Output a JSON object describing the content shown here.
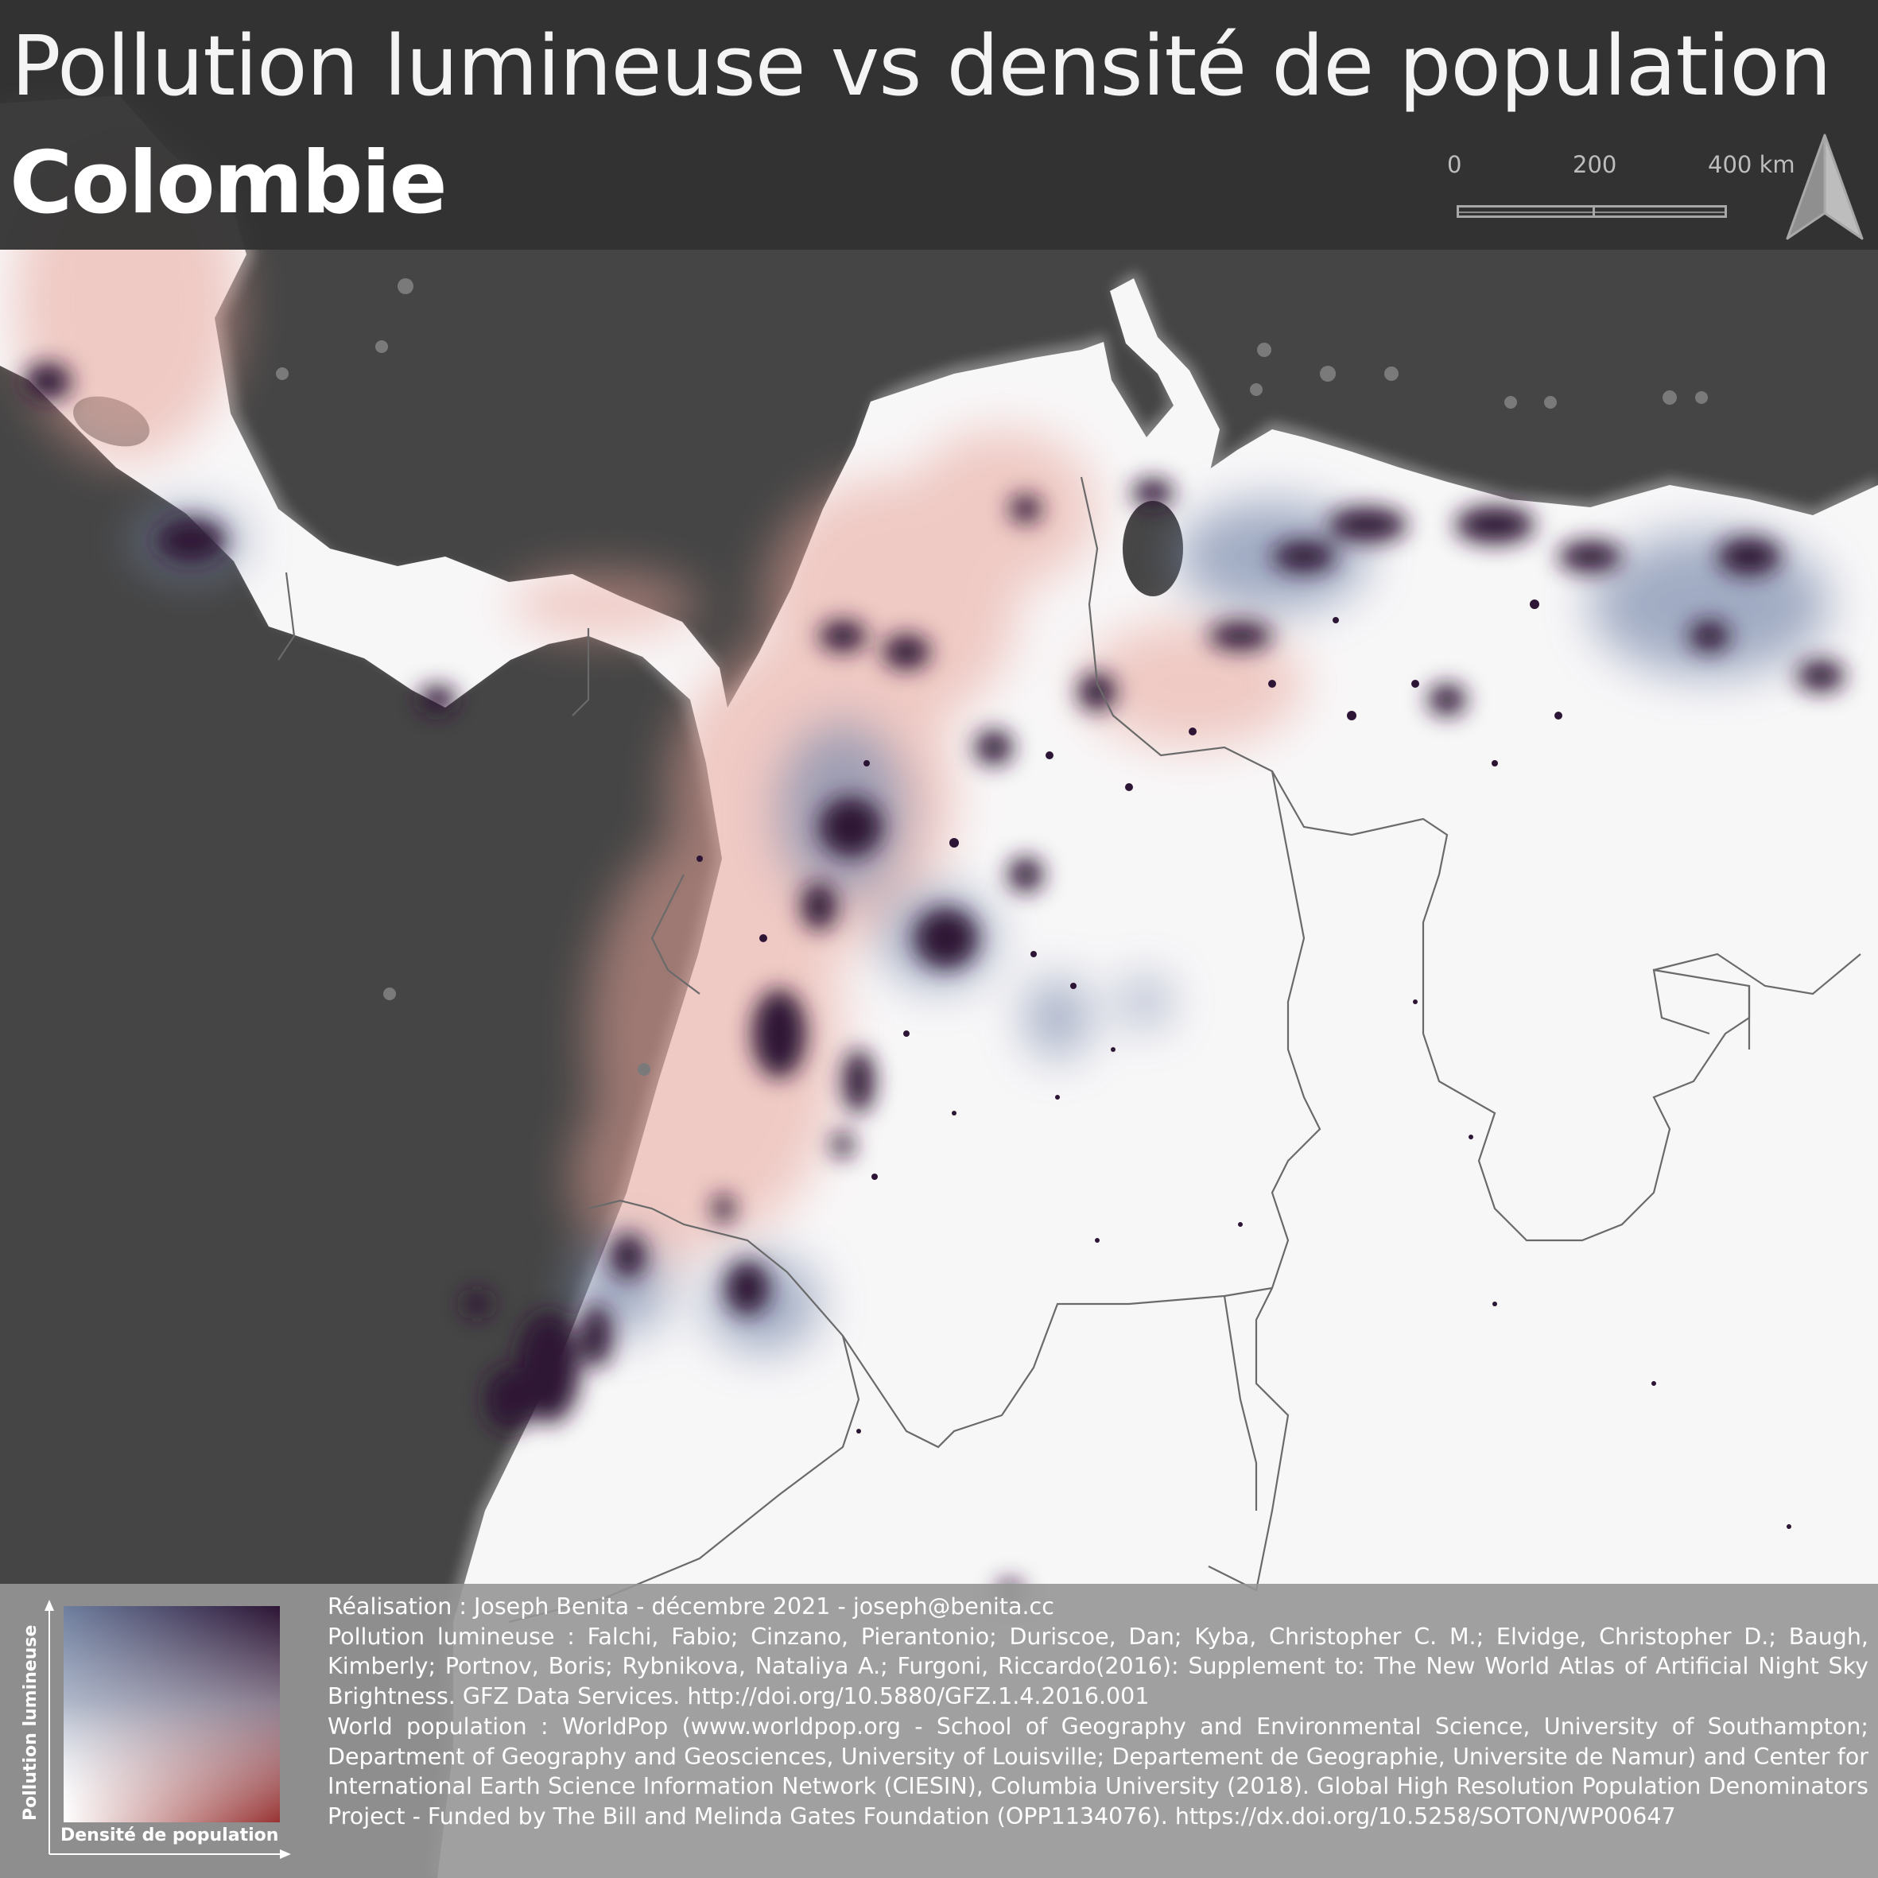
{
  "header": {
    "title": "Pollution lumineuse vs densité de population",
    "subtitle": "Colombie"
  },
  "scale_bar": {
    "labels": [
      "0",
      "200",
      "400 km"
    ]
  },
  "north_arrow": {
    "icon": "north-arrow-icon"
  },
  "legend": {
    "y_label": "Pollution lumineuse",
    "x_label": "Densité de population",
    "colors": {
      "low_low": "#ffffff",
      "high_light_low_pop": "#6f7f9f",
      "low_light_high_pop": "#8c1c1c",
      "high_high": "#2d1535"
    }
  },
  "credits": {
    "author": "Réalisation : Joseph Benita - décembre 2021 - joseph@benita.cc",
    "light_pollution_source": "Pollution lumineuse : Falchi, Fabio; Cinzano, Pierantonio; Duriscoe, Dan; Kyba, Christopher C. M.; Elvidge, Christopher D.; Baugh, Kimberly; Portnov, Boris; Rybnikova, Nataliya A.; Furgoni, Riccardo(2016): Supplement to: The New World Atlas of Artificial Night Sky Brightness. GFZ Data Services. http://doi.org/10.5880/GFZ.1.4.2016.001",
    "population_source": "World population : WorldPop (www.worldpop.org - School of Geography and Environmental Science, University of Southampton; Department of Geography and Geosciences, University of Louisville; Departement de Geographie, Universite de Namur) and Center for International Earth Science Information Network (CIESIN), Columbia University (2018). Global High Resolution Population Denominators Project - Funded by The Bill and Melinda Gates Foundation (OPP1134076). https://dx.doi.org/10.5258/SOTON/WP00647"
  },
  "colors": {
    "ocean": "#454545",
    "land": "#f8f7f8",
    "coast_glow": "#8a8a8a",
    "border": "#6a6a6a",
    "dense_light": "#2d1535",
    "bright_halo": "#6f7f9f",
    "rural_pop": "#e8a49a",
    "header_bg": "#323232",
    "footer_bg": "#969696"
  }
}
